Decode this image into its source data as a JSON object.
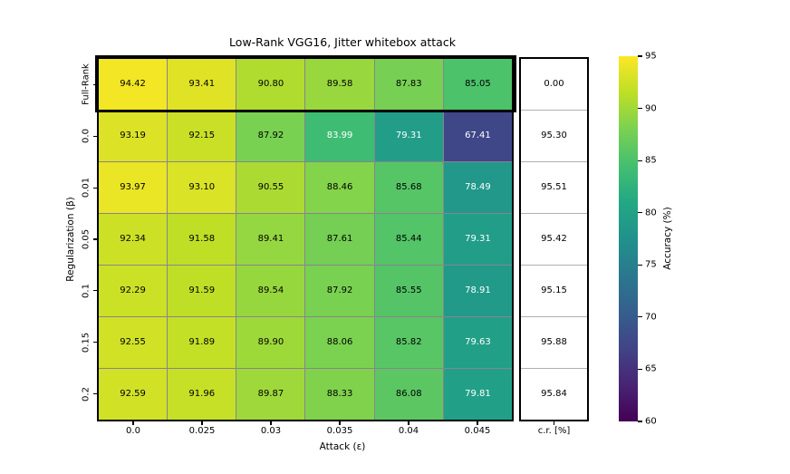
{
  "chart_data": {
    "type": "heatmap",
    "title": "Low-Rank VGG16, Jitter whitebox attack",
    "xlabel": "Attack (ε)",
    "ylabel": "Regularization (β)",
    "x_tick_labels": [
      "0.0",
      "0.025",
      "0.03",
      "0.035",
      "0.04",
      "0.045"
    ],
    "extra_column_label": "c.r. [%]",
    "y_tick_labels": [
      "Full-Rank",
      "0.0",
      "0.01",
      "0.05",
      "0.1",
      "0.15",
      "0.2"
    ],
    "cell_values": [
      [
        "94.42",
        "93.41",
        "90.80",
        "89.58",
        "87.83",
        "85.05"
      ],
      [
        "93.19",
        "92.15",
        "87.92",
        "83.99",
        "79.31",
        "67.41"
      ],
      [
        "93.97",
        "93.10",
        "90.55",
        "88.46",
        "85.68",
        "78.49"
      ],
      [
        "92.34",
        "91.58",
        "89.41",
        "87.61",
        "85.44",
        "79.31"
      ],
      [
        "92.29",
        "91.59",
        "89.54",
        "87.92",
        "85.55",
        "78.91"
      ],
      [
        "92.55",
        "91.89",
        "89.90",
        "88.06",
        "85.82",
        "79.63"
      ],
      [
        "92.59",
        "91.96",
        "89.87",
        "88.33",
        "86.08",
        "79.81"
      ]
    ],
    "cr_values": [
      "0.00",
      "95.30",
      "95.51",
      "95.42",
      "95.15",
      "95.88",
      "95.84"
    ],
    "highlighted_row": "Full-Rank",
    "colormap": "viridis",
    "colormap_stops": [
      "#440154",
      "#482475",
      "#414487",
      "#355f8d",
      "#2a788e",
      "#21918c",
      "#22a884",
      "#44bf70",
      "#7ad151",
      "#bddf26",
      "#fde725"
    ],
    "vmin": 60,
    "vmax": 95,
    "white_text_below": 84.5,
    "text_color_light": "#ffffff",
    "text_color_dark": "#000000",
    "colorbar": {
      "label": "Accuracy (%)",
      "ticks": [
        "95",
        "90",
        "85",
        "80",
        "75",
        "70",
        "65",
        "60"
      ]
    }
  }
}
